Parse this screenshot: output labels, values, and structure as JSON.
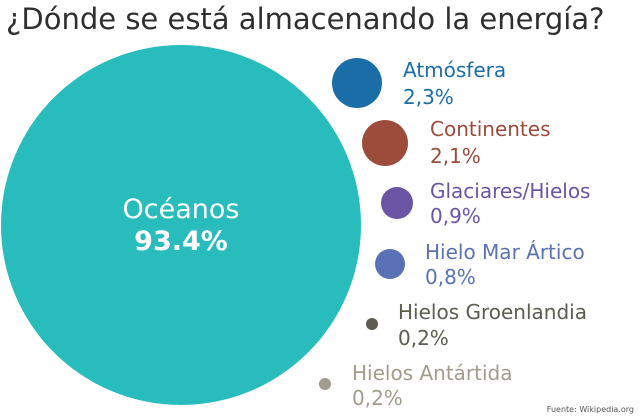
{
  "title": "¿Dónde se está almacenando la energía?",
  "source": "Fuente: Wikipedia.org",
  "chart_data": {
    "type": "bubble",
    "title": "¿Dónde se está almacenando la energía?",
    "series": [
      {
        "name": "Océanos",
        "value_label": "93.4%",
        "value": 93.4,
        "color": "#29bcbd"
      },
      {
        "name": "Atmósfera",
        "value_label": "2,3%",
        "value": 2.3,
        "color": "#1b6da8"
      },
      {
        "name": "Continentes",
        "value_label": "2,1%",
        "value": 2.1,
        "color": "#9d4b3b"
      },
      {
        "name": "Glaciares/Hielos",
        "value_label": "0,9%",
        "value": 0.9,
        "color": "#6a55a4"
      },
      {
        "name": "Hielo Mar Ártico",
        "value_label": "0,8%",
        "value": 0.8,
        "color": "#5a72b5"
      },
      {
        "name": "Hielos Groenlandia",
        "value_label": "0,2%",
        "value": 0.2,
        "color": "#5c5c50"
      },
      {
        "name": "Hielos Antártida",
        "value_label": "0,2%",
        "value": 0.2,
        "color": "#a29c8c"
      }
    ]
  }
}
